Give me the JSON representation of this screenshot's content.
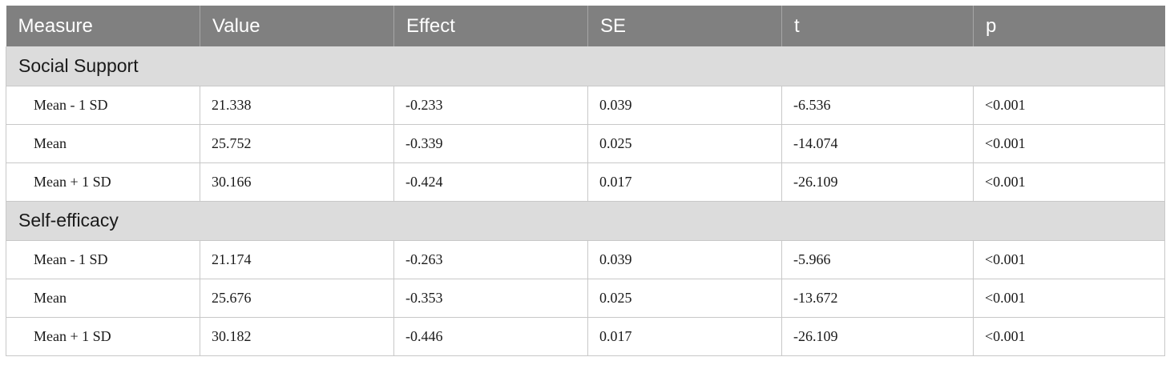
{
  "table": {
    "headers": [
      "Measure",
      "Value",
      "Effect",
      "SE",
      "t",
      "p"
    ],
    "sections": [
      {
        "title": "Social Support",
        "rows": [
          [
            "Mean - 1 SD",
            "21.338",
            "-0.233",
            "0.039",
            "-6.536",
            "<0.001"
          ],
          [
            "Mean",
            "25.752",
            "-0.339",
            "0.025",
            "-14.074",
            "<0.001"
          ],
          [
            "Mean + 1 SD",
            "30.166",
            "-0.424",
            "0.017",
            "-26.109",
            "<0.001"
          ]
        ]
      },
      {
        "title": "Self-efficacy",
        "rows": [
          [
            "Mean - 1 SD",
            "21.174",
            "-0.263",
            "0.039",
            "-5.966",
            "<0.001"
          ],
          [
            "Mean",
            "25.676",
            "-0.353",
            "0.025",
            "-13.672",
            "<0.001"
          ],
          [
            "Mean + 1 SD",
            "30.182",
            "-0.446",
            "0.017",
            "-26.109",
            "<0.001"
          ]
        ]
      }
    ]
  }
}
